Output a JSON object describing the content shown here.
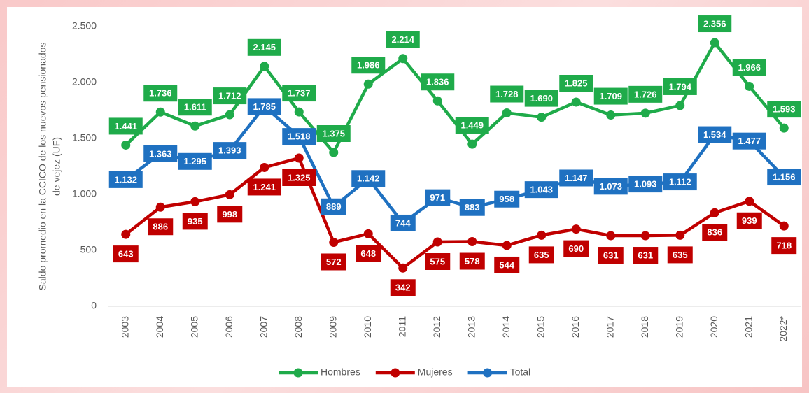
{
  "chart_data": {
    "type": "line",
    "y_label": [
      "Saldo promedio en la CCICO de los nuevos pensionados",
      "de vejez (UF)"
    ],
    "categories": [
      "2003",
      "2004",
      "2005",
      "2006",
      "2007",
      "2008",
      "2009",
      "2010",
      "2011",
      "2012",
      "2013",
      "2014",
      "2015",
      "2016",
      "2017",
      "2018",
      "2019",
      "2020",
      "2021",
      "2022*"
    ],
    "series": [
      {
        "name": "Hombres",
        "color": "#1fab4a",
        "values": [
          1441,
          1736,
          1611,
          1712,
          2145,
          1737,
          1375,
          1986,
          2214,
          1836,
          1449,
          1728,
          1690,
          1825,
          1709,
          1726,
          1794,
          2356,
          1966,
          1593
        ],
        "value_labels": [
          "1.441",
          "1.736",
          "1.611",
          "1.712",
          "2.145",
          "1.737",
          "1.375",
          "1.986",
          "2.214",
          "1.836",
          "1.449",
          "1.728",
          "1.690",
          "1.825",
          "1.709",
          "1.726",
          "1.794",
          "2.356",
          "1.966",
          "1.593"
        ]
      },
      {
        "name": "Mujeres",
        "color": "#c00000",
        "values": [
          643,
          886,
          935,
          998,
          1241,
          1325,
          572,
          648,
          342,
          575,
          578,
          544,
          635,
          690,
          631,
          631,
          635,
          836,
          939,
          718
        ],
        "value_labels": [
          "643",
          "886",
          "935",
          "998",
          "1.241",
          "1.325",
          "572",
          "648",
          "342",
          "575",
          "578",
          "544",
          "635",
          "690",
          "631",
          "631",
          "635",
          "836",
          "939",
          "718"
        ]
      },
      {
        "name": "Total",
        "color": "#1f71c1",
        "values": [
          1132,
          1363,
          1295,
          1393,
          1785,
          1518,
          889,
          1142,
          744,
          971,
          883,
          958,
          1043,
          1147,
          1073,
          1093,
          1112,
          1534,
          1477,
          1156
        ],
        "value_labels": [
          "1.132",
          "1.363",
          "1.295",
          "1.393",
          "1.785",
          "1.518",
          "889",
          "1.142",
          "744",
          "971",
          "883",
          "958",
          "1.043",
          "1.147",
          "1.073",
          "1.093",
          "1.112",
          "1.534",
          "1.477",
          "1.156"
        ]
      }
    ],
    "ylim": [
      0,
      2500
    ],
    "yticks": [
      0,
      500,
      {
        "value": 1000,
        "label": "1.000"
      },
      {
        "value": 1500,
        "label": "1.500"
      },
      {
        "value": 2000,
        "label": "2.000"
      },
      {
        "value": 2500,
        "label": "2.500"
      }
    ],
    "grid": false,
    "legend": "bottom"
  }
}
